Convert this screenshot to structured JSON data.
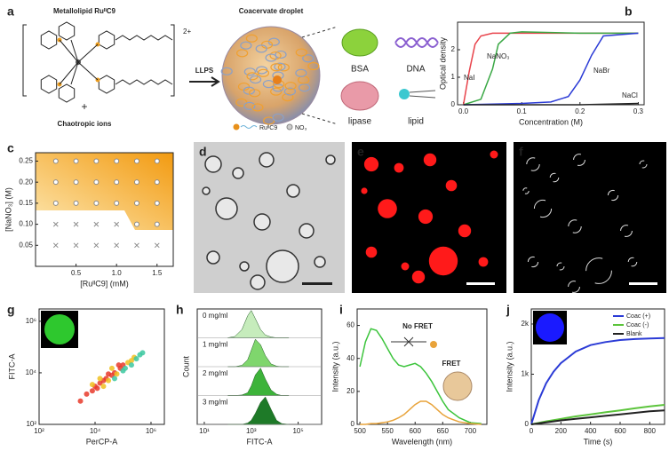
{
  "panel_labels": [
    "a",
    "b",
    "c",
    "d",
    "e",
    "f",
    "g",
    "h",
    "i",
    "j"
  ],
  "schematic": {
    "molecule": "Metallolipid RuᴵᴵC9",
    "charge": "2+",
    "plus": "+",
    "ions": "Chaotropic ions",
    "process": "LLPS",
    "droplet": "Coacervate droplet",
    "legend": [
      "RuᴵᴵC9",
      "NO₃"
    ],
    "cargo": [
      "BSA",
      "DNA",
      "lipase",
      "lipid"
    ]
  },
  "chart_data": [
    {
      "type": "line",
      "xlabel": "Concentration (M)",
      "ylabel": "Optical density",
      "xlim": [
        -0.01,
        0.31
      ],
      "ylim": [
        0,
        3
      ],
      "xticks": [
        {
          "value": 0,
          "label": "0.0"
        },
        0.1,
        0.2,
        0.3
      ],
      "yticks": [
        0,
        1,
        2
      ],
      "series": [
        {
          "name": "NaI",
          "color": "#e8434b",
          "x": [
            0,
            0.01,
            0.02,
            0.03,
            0.05,
            0.1,
            0.2,
            0.3
          ],
          "values": [
            0,
            1.2,
            2.2,
            2.5,
            2.6,
            2.6,
            2.6,
            2.6
          ]
        },
        {
          "name": "NaNO₃",
          "color": "#3aa845",
          "x": [
            0,
            0.03,
            0.05,
            0.06,
            0.08,
            0.1,
            0.2,
            0.3
          ],
          "values": [
            0,
            0.2,
            1.3,
            2.2,
            2.6,
            2.65,
            2.6,
            2.6
          ]
        },
        {
          "name": "NaBr",
          "color": "#2b3bd6",
          "x": [
            0,
            0.1,
            0.15,
            0.18,
            0.2,
            0.22,
            0.24,
            0.3
          ],
          "values": [
            0,
            0.05,
            0.1,
            0.3,
            0.9,
            1.8,
            2.5,
            2.6
          ]
        },
        {
          "name": "NaCl",
          "color": "#222222",
          "x": [
            0,
            0.1,
            0.2,
            0.3
          ],
          "values": [
            0,
            0,
            0,
            0.05
          ]
        }
      ]
    },
    {
      "type": "scatter",
      "xlabel": "[RuᴵᴵC9] (mM)",
      "ylabel": "[NaNO₃] (M)",
      "xlim": [
        0,
        1.7
      ],
      "ylim": [
        0,
        0.27
      ],
      "xticks": [
        0.5,
        {
          "value": 1,
          "label": "1.0"
        },
        1.5
      ],
      "yticks": [
        0.05,
        {
          "value": 0.1,
          "label": "0.10"
        },
        0.15,
        {
          "value": 0.2,
          "label": "0.20"
        },
        0.25
      ],
      "series": [
        {
          "marker": "o",
          "color": "#8a8a8a",
          "x": [
            0.25,
            0.5,
            0.75,
            1,
            1.25,
            1.5,
            0.25,
            0.5,
            0.75,
            1,
            1.25,
            1.5,
            0.25,
            0.5,
            0.75,
            1,
            1.25,
            1.5,
            1.25,
            1.5
          ],
          "values": [
            0.25,
            0.25,
            0.25,
            0.25,
            0.25,
            0.25,
            0.2,
            0.2,
            0.2,
            0.2,
            0.2,
            0.2,
            0.15,
            0.15,
            0.15,
            0.15,
            0.15,
            0.15,
            0.1,
            0.1
          ]
        },
        {
          "marker": "x",
          "color": "#8a8a8a",
          "x": [
            0.25,
            0.5,
            0.75,
            1,
            0.25,
            0.5,
            0.75,
            1,
            1.25,
            1.5
          ],
          "values": [
            0.1,
            0.1,
            0.1,
            0.1,
            0.05,
            0.05,
            0.05,
            0.05,
            0.05,
            0.05
          ]
        }
      ]
    },
    {
      "type": "scatter",
      "xlabel": "PerCP-A",
      "ylabel": "FITC-A",
      "xlog": true,
      "ylog": true,
      "xlim": [
        100,
        3000000
      ],
      "ylim": [
        100,
        3000000
      ],
      "xticks": [
        {
          "value": 100,
          "label": "10²"
        },
        {
          "value": 10000,
          "label": "10⁴"
        },
        {
          "value": 1000000,
          "label": "10⁶"
        }
      ],
      "yticks": [
        {
          "value": 100,
          "label": "10²"
        },
        {
          "value": 10000,
          "label": "10⁴"
        },
        {
          "value": 1000000,
          "label": "10⁶"
        }
      ],
      "x": [
        3000,
        5000,
        8000,
        10000,
        12000,
        15000,
        20000,
        25000,
        30000,
        40000,
        50000,
        60000,
        80000,
        100000,
        120000,
        150000,
        200000,
        250000,
        300000,
        400000,
        500000,
        20000,
        30000,
        50000,
        70000,
        15000,
        40000,
        100000,
        8000,
        200000
      ],
      "values": [
        800,
        1500,
        2000,
        3000,
        2500,
        4000,
        5000,
        6000,
        5000,
        8000,
        10000,
        9000,
        15000,
        20000,
        15000,
        25000,
        30000,
        40000,
        35000,
        50000,
        60000,
        3000,
        9000,
        6000,
        20000,
        6000,
        15000,
        12000,
        3500,
        20000
      ]
    },
    {
      "type": "ridgeline",
      "xlabel": "FITC-A",
      "ylabel": "Count",
      "xlog": true,
      "xlim": [
        5,
        1000000
      ],
      "ylim": [
        0,
        100
      ],
      "xticks": [
        {
          "value": 10,
          "label": "10¹"
        },
        {
          "value": 1000,
          "label": "10³"
        },
        {
          "value": 100000,
          "label": "10⁵"
        }
      ],
      "x": [
        100,
        200,
        400,
        700,
        1000,
        1500,
        2500,
        4000,
        7000,
        12000,
        20000,
        40000
      ],
      "series": [
        {
          "name": "0 mg/ml",
          "color": "#c6ecbc",
          "values": [
            0,
            5,
            30,
            80,
            100,
            70,
            30,
            10,
            3,
            0,
            0,
            0
          ]
        },
        {
          "name": "1 mg/ml",
          "color": "#7fd66d",
          "values": [
            0,
            0,
            5,
            25,
            60,
            100,
            80,
            40,
            10,
            2,
            0,
            0
          ]
        },
        {
          "name": "2 mg/ml",
          "color": "#3db33a",
          "values": [
            0,
            0,
            2,
            10,
            35,
            75,
            100,
            60,
            20,
            5,
            0,
            0
          ]
        },
        {
          "name": "3 mg/ml",
          "color": "#1e7a28",
          "values": [
            0,
            0,
            0,
            5,
            15,
            40,
            80,
            100,
            55,
            15,
            3,
            0
          ]
        }
      ]
    },
    {
      "type": "line",
      "xlabel": "Wavelength (nm)",
      "ylabel": "Intensity (a.u.)",
      "xlim": [
        495,
        730
      ],
      "ylim": [
        0,
        70
      ],
      "xticks": [
        500,
        550,
        600,
        650,
        700
      ],
      "yticks": [
        0,
        20,
        40,
        60
      ],
      "x": [
        500,
        510,
        520,
        530,
        540,
        550,
        560,
        570,
        580,
        590,
        600,
        610,
        620,
        630,
        640,
        650,
        660,
        680,
        700,
        720
      ],
      "series": [
        {
          "color": "#3cc43c",
          "values": [
            35,
            50,
            58,
            57,
            52,
            46,
            40,
            36,
            35,
            36,
            37,
            35,
            31,
            26,
            20,
            14,
            9,
            4,
            1,
            0.5
          ]
        },
        {
          "color": "#e8a33a",
          "values": [
            0,
            0,
            0.5,
            0.5,
            1,
            1.5,
            2.5,
            4,
            6,
            9,
            12,
            14,
            14,
            12,
            9,
            6,
            4,
            1.5,
            0.5,
            0
          ]
        }
      ],
      "annotations": [
        "No FRET",
        "FRET"
      ]
    },
    {
      "type": "line",
      "xlabel": "Time (s)",
      "ylabel": "Intensity (a.u.)",
      "xlim": [
        0,
        900
      ],
      "ylim": [
        0,
        2300
      ],
      "xticks": [
        0,
        200,
        400,
        600,
        800
      ],
      "yticks": [
        0,
        {
          "value": 1000,
          "label": "1k"
        },
        {
          "value": 2000,
          "label": "2k"
        }
      ],
      "x": [
        0,
        50,
        100,
        150,
        200,
        300,
        400,
        500,
        600,
        700,
        800,
        900
      ],
      "series": [
        {
          "name": "Coac (+)",
          "color": "#2b3bd6",
          "values": [
            0,
            480,
            820,
            1050,
            1220,
            1450,
            1580,
            1640,
            1680,
            1700,
            1710,
            1720
          ]
        },
        {
          "name": "Coac (-)",
          "color": "#5cc43c",
          "values": [
            0,
            30,
            60,
            85,
            110,
            160,
            200,
            240,
            280,
            320,
            360,
            390
          ]
        },
        {
          "name": "Blank",
          "color": "#222222",
          "values": [
            0,
            20,
            40,
            60,
            80,
            110,
            140,
            170,
            200,
            230,
            260,
            280
          ]
        }
      ],
      "legend": "upper right"
    }
  ]
}
